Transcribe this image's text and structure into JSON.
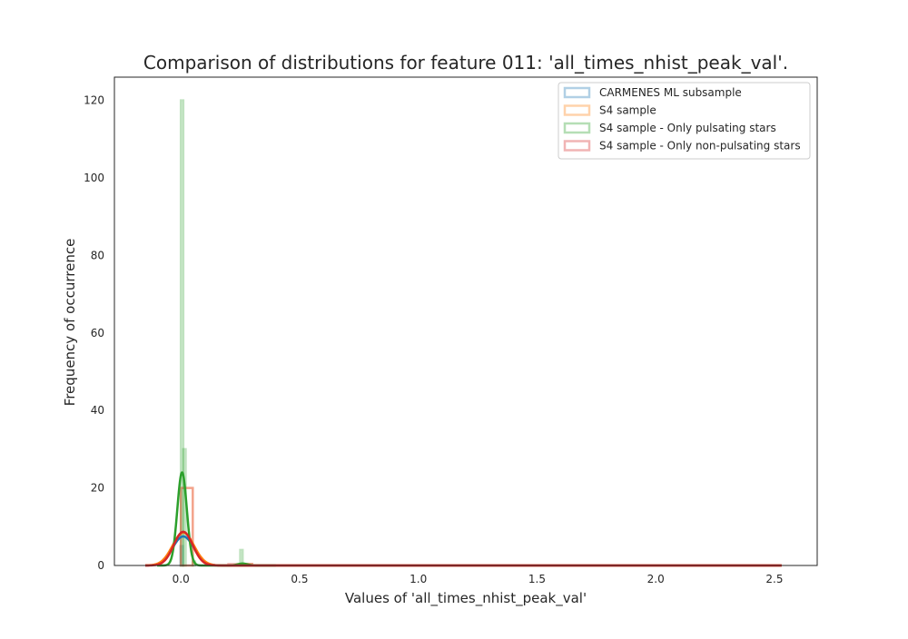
{
  "chart_data": {
    "type": "histogram",
    "title": "Comparison of distributions for feature 011: 'all_times_nhist_peak_val'.",
    "xlabel": "Values of 'all_times_nhist_peak_val'",
    "ylabel": "Frequency of occurrence",
    "xlim": [
      -0.28,
      2.68
    ],
    "ylim": [
      0,
      126
    ],
    "xticks": [
      0.0,
      0.5,
      1.0,
      1.5,
      2.0,
      2.5
    ],
    "xtick_labels": [
      "0.0",
      "0.5",
      "1.0",
      "1.5",
      "2.0",
      "2.5"
    ],
    "yticks": [
      0,
      20,
      40,
      60,
      80,
      100,
      120
    ],
    "ytick_labels": [
      "0",
      "20",
      "40",
      "60",
      "80",
      "100",
      "120"
    ],
    "grid": false,
    "legend_position": "top-right",
    "series": [
      {
        "name": "CARMENES ML subsample",
        "color": "#1f77b4",
        "hist": [
          {
            "x0": -0.002,
            "x1": 0.008,
            "y": 5
          }
        ],
        "kde_center": 0.01,
        "kde_sigma": 0.045,
        "kde_peak": 7.5,
        "kde_range": [
          -0.15,
          2.53
        ]
      },
      {
        "name": "S4 sample",
        "color": "#ff7f0e",
        "hist": [
          {
            "x0": 0.0,
            "x1": 0.05,
            "y": 20
          },
          {
            "x0": 0.25,
            "x1": 0.3,
            "y": 0.4
          }
        ],
        "kde_center": 0.01,
        "kde_sigma": 0.045,
        "kde_peak": 8.5,
        "kde_range": [
          -0.15,
          2.53
        ]
      },
      {
        "name": "S4 sample - Only pulsating stars",
        "color": "#2ca02c",
        "hist": [
          {
            "x0": 0.0,
            "x1": 0.01,
            "y": 120
          },
          {
            "x0": 0.01,
            "x1": 0.02,
            "y": 30
          },
          {
            "x0": 0.05,
            "x1": 0.06,
            "y": 1
          },
          {
            "x0": 0.25,
            "x1": 0.26,
            "y": 4
          }
        ],
        "kde_center": 0.005,
        "kde_sigma": 0.02,
        "kde_peak": 24,
        "kde_range": [
          -0.1,
          0.4
        ],
        "kde_bump": {
          "center": 0.26,
          "sigma": 0.02,
          "peak": 0.5
        }
      },
      {
        "name": "S4 sample - Only non-pulsating stars",
        "color": "#d62728",
        "hist": [
          {
            "x0": 0.0,
            "x1": 0.05,
            "y": 20
          },
          {
            "x0": 0.2,
            "x1": 0.3,
            "y": 0.4
          }
        ],
        "kde_center": 0.01,
        "kde_sigma": 0.04,
        "kde_peak": 8.7,
        "kde_range": [
          -0.15,
          2.53
        ]
      }
    ]
  }
}
